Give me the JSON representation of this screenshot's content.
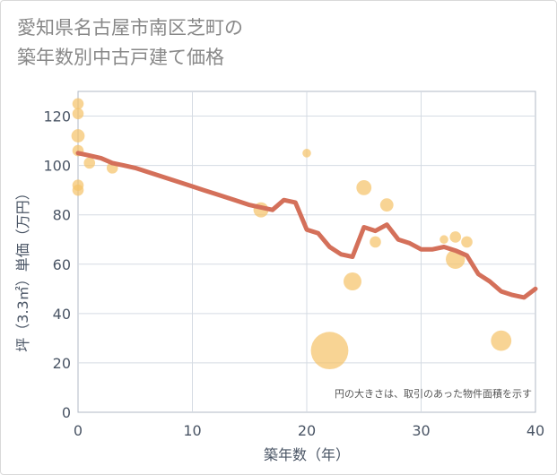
{
  "title": {
    "line1": "愛知県名古屋市南区芝町の",
    "line2": "築年数別中古戸建て価格"
  },
  "chart_data": {
    "type": "scatter+line",
    "xlabel": "築年数（年）",
    "ylabel": "坪（3.3㎡）単価（万円）",
    "xlim": [
      0,
      40
    ],
    "ylim": [
      0,
      130
    ],
    "xticks": [
      0,
      10,
      20,
      30,
      40
    ],
    "yticks": [
      0,
      20,
      40,
      60,
      80,
      100,
      120
    ],
    "grid": true,
    "note": "円の大きさは、取引のあった物件面積を示す",
    "colors": {
      "bubble": "#f5c36b",
      "line": "#d4705a",
      "grid": "#d5dbe3",
      "plot_border": "#b0b8c4"
    },
    "bubbles": [
      {
        "x": 0,
        "y": 125,
        "size": 2
      },
      {
        "x": 0,
        "y": 121,
        "size": 2
      },
      {
        "x": 0,
        "y": 112,
        "size": 3
      },
      {
        "x": 0,
        "y": 106,
        "size": 2
      },
      {
        "x": 0,
        "y": 92,
        "size": 2
      },
      {
        "x": 0,
        "y": 90,
        "size": 2
      },
      {
        "x": 1,
        "y": 101,
        "size": 2
      },
      {
        "x": 3,
        "y": 99,
        "size": 2
      },
      {
        "x": 16,
        "y": 82,
        "size": 4
      },
      {
        "x": 20,
        "y": 105,
        "size": 1
      },
      {
        "x": 22,
        "y": 25,
        "size": 30
      },
      {
        "x": 24,
        "y": 53,
        "size": 6
      },
      {
        "x": 25,
        "y": 91,
        "size": 4
      },
      {
        "x": 26,
        "y": 69,
        "size": 2
      },
      {
        "x": 27,
        "y": 84,
        "size": 3
      },
      {
        "x": 32,
        "y": 70,
        "size": 1
      },
      {
        "x": 33,
        "y": 71,
        "size": 2
      },
      {
        "x": 33,
        "y": 62,
        "size": 7
      },
      {
        "x": 34,
        "y": 69,
        "size": 2
      },
      {
        "x": 37,
        "y": 29,
        "size": 8
      }
    ],
    "line": {
      "x": [
        0,
        1,
        2,
        3,
        4,
        5,
        6,
        7,
        8,
        9,
        10,
        11,
        12,
        13,
        14,
        15,
        16,
        17,
        18,
        19,
        20,
        21,
        22,
        23,
        24,
        25,
        26,
        27,
        28,
        29,
        30,
        31,
        32,
        33,
        34,
        35,
        36,
        37,
        38,
        39,
        40
      ],
      "y": [
        105,
        104,
        103,
        101,
        100,
        99,
        97.5,
        96,
        94.5,
        93,
        91.5,
        90,
        88.5,
        87,
        85.5,
        84,
        83,
        82,
        86,
        85,
        74,
        72.5,
        67,
        64,
        63,
        75,
        73.5,
        76,
        70,
        68.5,
        66,
        66,
        67,
        65.5,
        63.5,
        56,
        53,
        49,
        47.5,
        46.5,
        50
      ]
    }
  }
}
